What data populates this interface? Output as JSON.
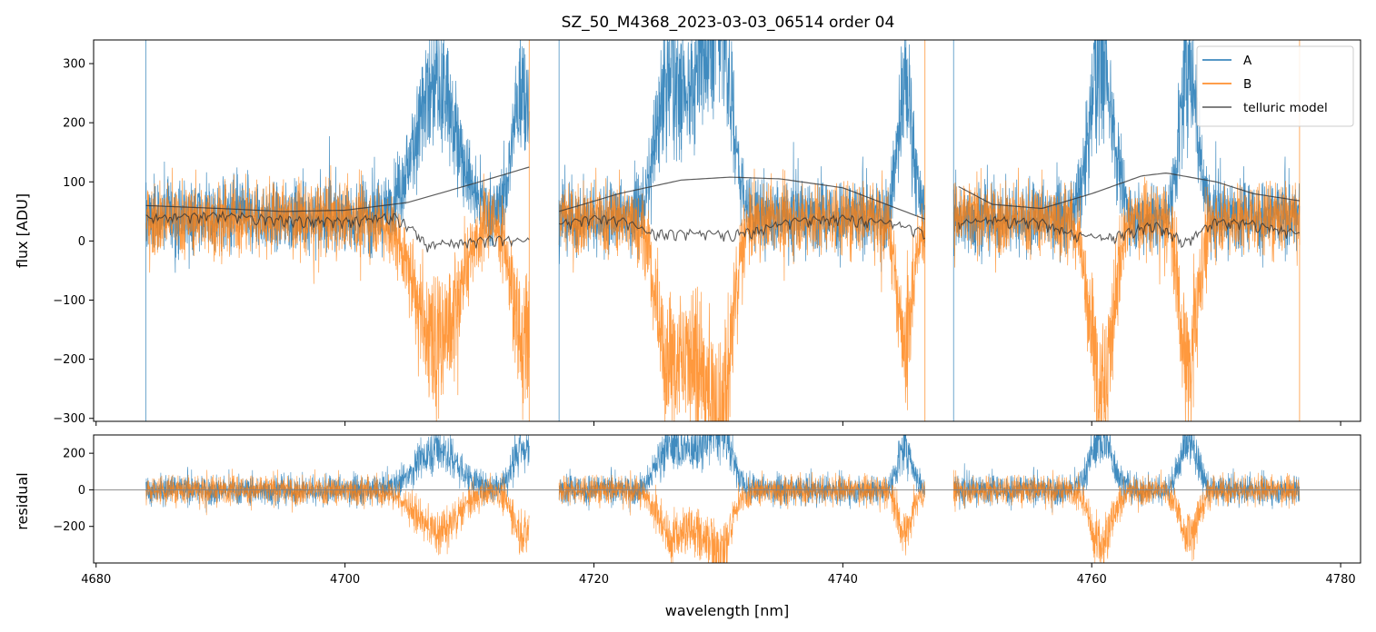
{
  "colors": {
    "A": "#1f77b4",
    "B": "#ff7f0e",
    "model": "#333333",
    "axis": "#000000",
    "zero": "#808080"
  },
  "chart_data": [
    {
      "type": "line",
      "panel": "main",
      "title": "SZ_50_M4368_2023-03-03_06514  order 04",
      "xlabel": "",
      "ylabel": "flux [ADU]",
      "xlim": [
        4679.8,
        4781.6
      ],
      "ylim": [
        -305,
        340
      ],
      "xticks": [
        4680,
        4700,
        4720,
        4740,
        4760,
        4780
      ],
      "yticks": [
        -300,
        -200,
        -100,
        0,
        100,
        200,
        300
      ],
      "ytick_labels": [
        "−300",
        "−200",
        "−100",
        "0",
        "100",
        "200",
        "300"
      ],
      "legend": {
        "location": "top-right",
        "entries": [
          "A",
          "B",
          "telluric model"
        ]
      },
      "segments": [
        [
          4684.0,
          4714.8
        ],
        [
          4717.2,
          4746.6
        ],
        [
          4748.9,
          4776.7
        ]
      ],
      "absorption_bands": [
        {
          "center": 4707.4,
          "width": 1.7,
          "amplitude": 220
        },
        {
          "center": 4714.3,
          "width": 0.8,
          "amplitude": 230
        },
        {
          "center": 4725.8,
          "width": 0.9,
          "amplitude": 170
        },
        {
          "center": 4728.5,
          "width": 1.6,
          "amplitude": 240
        },
        {
          "center": 4730.3,
          "width": 0.8,
          "amplitude": 200
        },
        {
          "center": 4745.0,
          "width": 0.6,
          "amplitude": 230
        },
        {
          "center": 4760.8,
          "width": 0.9,
          "amplitude": 280
        },
        {
          "center": 4767.8,
          "width": 0.7,
          "amplitude": 260
        }
      ],
      "series": [
        {
          "name": "A",
          "baseline": 40,
          "noise": 30
        },
        {
          "name": "B",
          "baseline": 40,
          "noise": 30
        },
        {
          "name": "telluric model",
          "continuum_curves": [
            {
              "x": [
                4684.0,
                4690,
                4695,
                4700,
                4705,
                4710,
                4714.8
              ],
              "y": [
                60,
                55,
                50,
                52,
                65,
                95,
                125
              ]
            },
            {
              "x": [
                4717.2,
                4722,
                4727,
                4731,
                4735,
                4740,
                4746.6
              ],
              "y": [
                50,
                80,
                103,
                108,
                105,
                90,
                37
              ]
            },
            {
              "x": [
                4749.3,
                4752,
                4756,
                4760,
                4764,
                4766,
                4770,
                4773,
                4776.7
              ],
              "y": [
                92,
                62,
                55,
                80,
                110,
                115,
                100,
                80,
                68
              ]
            }
          ],
          "absorption_curves": [
            {
              "x": [
                4684.0,
                4690,
                4696,
                4700,
                4704,
                4705.8,
                4706.5,
                4710,
                4712,
                4714.8
              ],
              "y": [
                45,
                50,
                42,
                40,
                48,
                20,
                0,
                5,
                10,
                5
              ]
            },
            {
              "x": [
                4717.2,
                4720,
                4722.5,
                4724.3,
                4727,
                4731,
                4733.3,
                4736,
                4740,
                4744,
                4746.6
              ],
              "y": [
                35,
                45,
                40,
                20,
                20,
                18,
                25,
                40,
                45,
                35,
                22
              ]
            },
            {
              "x": [
                4749.3,
                4752,
                4756,
                4758,
                4761,
                4765,
                4767.5,
                4770,
                4773,
                4776.7
              ],
              "y": [
                35,
                42,
                38,
                20,
                10,
                35,
                5,
                40,
                35,
                18
              ]
            }
          ]
        }
      ]
    },
    {
      "type": "line",
      "panel": "residual",
      "xlabel": "wavelength [nm]",
      "ylabel": "residual",
      "xlim": [
        4679.8,
        4781.6
      ],
      "ylim": [
        -400,
        300
      ],
      "xticks": [
        4680,
        4700,
        4720,
        4740,
        4760,
        4780
      ],
      "xtick_labels": [
        "4680",
        "4700",
        "4720",
        "4740",
        "4760",
        "4780"
      ],
      "yticks": [
        -200,
        0,
        200
      ],
      "ytick_labels": [
        "−200",
        "0",
        "200"
      ],
      "zero_line": 0,
      "series": [
        {
          "name": "A",
          "baseline": 0,
          "noise": 40
        },
        {
          "name": "B",
          "baseline": 0,
          "noise": 40
        }
      ]
    }
  ]
}
